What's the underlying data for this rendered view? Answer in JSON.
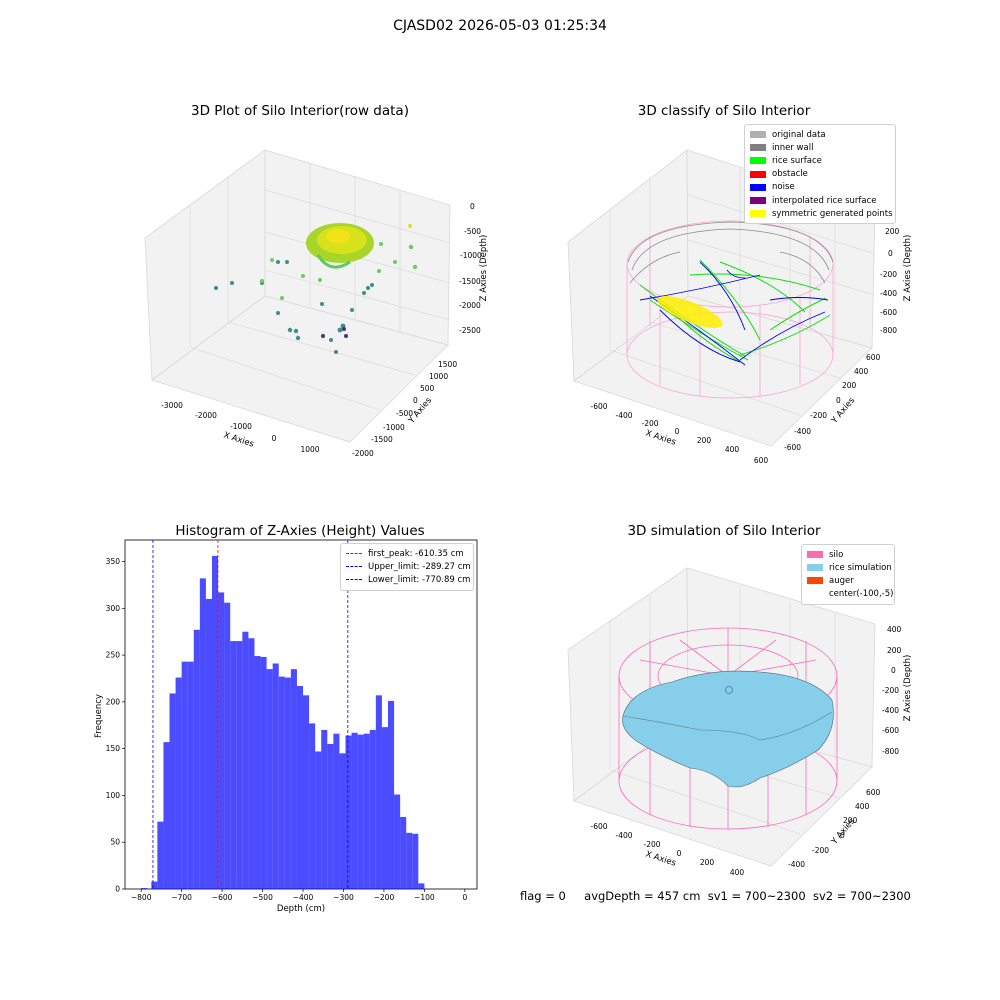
{
  "figure": {
    "suptitle": "CJASD02 2026-05-03 01:25:34",
    "status": {
      "flag": "flag = 0",
      "avg_depth": "avgDepth = 457 cm",
      "sv1": "sv1 = 700~2300",
      "sv2": "sv2 = 700~2300"
    }
  },
  "panels": {
    "raw": {
      "title": "3D Plot of Silo Interior(row data)",
      "xlabel": "X Axies",
      "ylabel": "Y Axies",
      "zlabel": "Z Axies (Depth)",
      "xticks": [
        "-3000",
        "-2000",
        "-1000",
        "0",
        "1000"
      ],
      "yticks": [
        "-2000",
        "-1500",
        "-1000",
        "-500",
        "0",
        "500",
        "1000",
        "1500"
      ],
      "zticks": [
        "0",
        "-500",
        "-1000",
        "-1500",
        "-2000",
        "-2500"
      ]
    },
    "classify": {
      "title": "3D classify of Silo Interior",
      "xlabel": "X Axies",
      "ylabel": "Y Axies",
      "zlabel": "Z Axies (Depth)",
      "xticks": [
        "-600",
        "-400",
        "-200",
        "0",
        "200",
        "400",
        "600"
      ],
      "yticks": [
        "-600",
        "-400",
        "-200",
        "0",
        "200",
        "400",
        "600"
      ],
      "zticks": [
        "200",
        "0",
        "-200",
        "-400",
        "-600",
        "-800"
      ],
      "legend": [
        {
          "label": "original data",
          "color": "#b0b0b0"
        },
        {
          "label": "inner wall",
          "color": "#808080"
        },
        {
          "label": "rice surface",
          "color": "#00ff00"
        },
        {
          "label": "obstacle",
          "color": "#ff0000"
        },
        {
          "label": "noise",
          "color": "#0000ff"
        },
        {
          "label": "interpolated rice surface",
          "color": "#800080"
        },
        {
          "label": "symmetric generated points",
          "color": "#ffff00"
        }
      ]
    },
    "simulation": {
      "title": "3D simulation of Silo Interior",
      "xlabel": "X Axies",
      "ylabel": "Y Axies",
      "zlabel": "Z Axies (Depth)",
      "xticks": [
        "-600",
        "-400",
        "-200",
        "0",
        "200",
        "400"
      ],
      "yticks": [
        "-400",
        "-200",
        "0",
        "200",
        "400",
        "600"
      ],
      "zticks": [
        "400",
        "200",
        "0",
        "-200",
        "-400",
        "-600",
        "-800"
      ],
      "legend": [
        {
          "label": "silo",
          "color": "#ff69b4"
        },
        {
          "label": "rice simulation",
          "color": "#87ceeb"
        },
        {
          "label": "auger",
          "color": "#ff4500"
        },
        {
          "label": "center(-100,-5)",
          "color": ""
        }
      ]
    }
  },
  "chart_data": {
    "type": "bar",
    "title": "Histogram of Z-Axies (Height) Values",
    "xlabel": "Depth (cm)",
    "ylabel": "Frequency",
    "xlim": [
      -840,
      30
    ],
    "ylim": [
      0,
      373
    ],
    "xticks": [
      -800,
      -700,
      -600,
      -500,
      -400,
      -300,
      -200,
      -100,
      0
    ],
    "yticks": [
      0,
      50,
      100,
      150,
      200,
      250,
      300,
      350
    ],
    "bar_color": "#0000ff",
    "bin_width": 15,
    "bin_start": -775,
    "values": [
      8,
      72,
      157,
      209,
      226,
      243,
      243,
      277,
      332,
      310,
      356,
      317,
      306,
      265,
      265,
      275,
      268,
      249,
      248,
      235,
      241,
      227,
      226,
      235,
      217,
      207,
      177,
      147,
      170,
      155,
      166,
      145,
      164,
      167,
      165,
      166,
      170,
      207,
      173,
      201,
      101,
      77,
      60,
      59,
      6
    ],
    "outliers": [
      {
        "x": -800,
        "value": 1
      }
    ],
    "vlines": [
      {
        "x": -610.35,
        "color": "#ff0000",
        "label": "first_peak: -610.35 cm"
      },
      {
        "x": -289.27,
        "color": "#0000ff",
        "label": "Upper_limit: -289.27 cm"
      },
      {
        "x": -770.89,
        "color": "#0000ff",
        "label": "Lower_limit: -770.89 cm"
      }
    ],
    "legend_position": "upper right"
  }
}
